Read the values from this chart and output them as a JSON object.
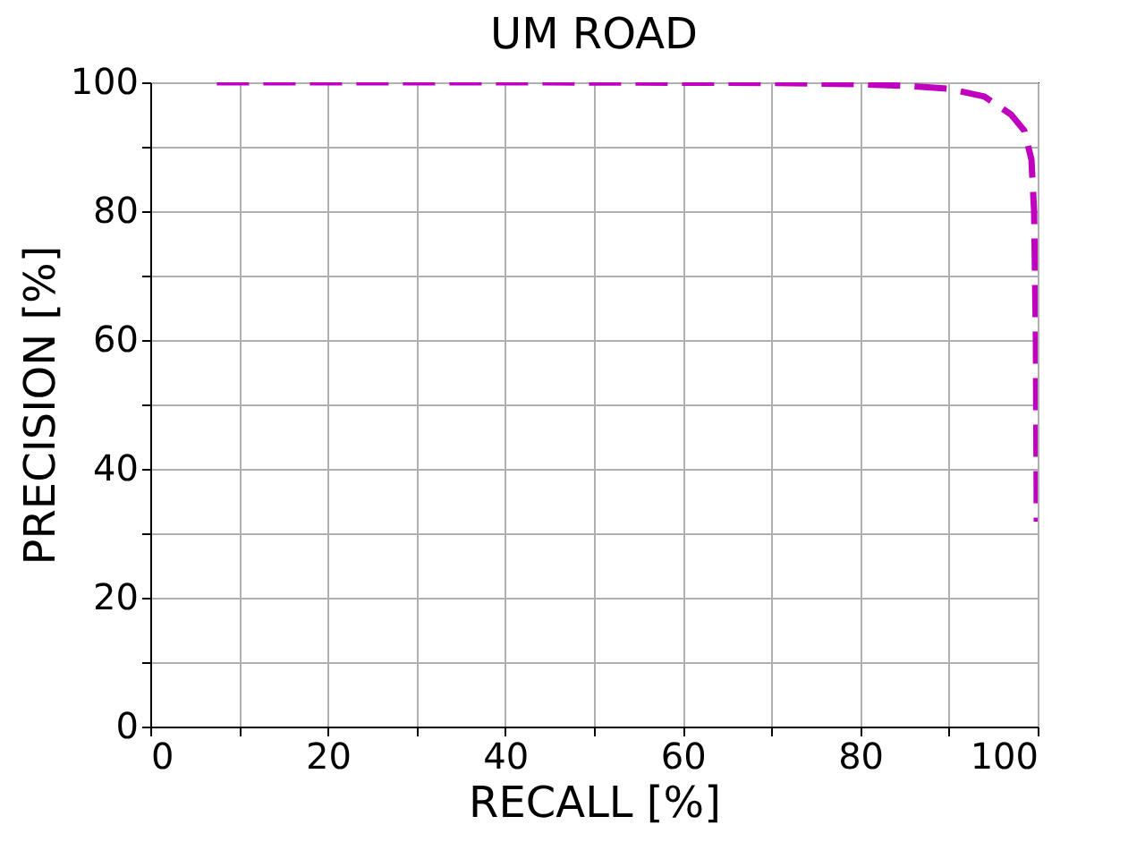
{
  "chart_data": {
    "type": "line",
    "title": "UM ROAD",
    "xlabel": "RECALL [%]",
    "ylabel": "PRECISION [%]",
    "series": [
      {
        "color": "#bf00bf",
        "x": [
          7.5,
          40,
          70,
          80,
          86,
          90,
          94,
          97,
          98.5,
          99.3,
          99.6,
          99.8,
          99.9
        ],
        "values": [
          100,
          100,
          99.9,
          99.7,
          99.4,
          99,
          97.8,
          95,
          92.5,
          88,
          80,
          60,
          31.8
        ]
      }
    ],
    "xlim": [
      0,
      100
    ],
    "ylim": [
      0,
      100
    ],
    "xticks": [
      0,
      {
        "value": 10,
        "label": null
      },
      20,
      {
        "value": 30,
        "label": null
      },
      40,
      {
        "value": 50,
        "label": null
      },
      60,
      {
        "value": 70,
        "label": null
      },
      80,
      {
        "value": 90,
        "label": null
      },
      100
    ],
    "yticks": [
      0,
      {
        "value": 10,
        "label": null
      },
      20,
      {
        "value": 30,
        "label": null
      },
      40,
      {
        "value": 50,
        "label": null
      },
      60,
      {
        "value": 70,
        "label": null
      },
      80,
      {
        "value": 90,
        "label": null
      },
      100
    ],
    "grid": true,
    "line_style": "dashed",
    "marker": "none"
  }
}
